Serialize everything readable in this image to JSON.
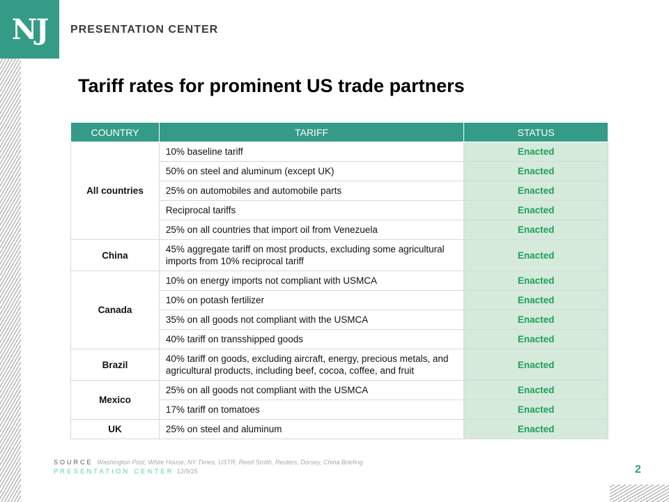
{
  "header": {
    "logo": "NJ",
    "brand": "PRESENTATION CENTER"
  },
  "title": "Tariff rates for prominent US trade partners",
  "table": {
    "headers": [
      "COUNTRY",
      "TARIFF",
      "STATUS"
    ],
    "groups": [
      {
        "country": "All countries",
        "rows": [
          {
            "tariff": "10% baseline tariff",
            "status": "Enacted"
          },
          {
            "tariff": "50% on steel and aluminum (except UK)",
            "status": "Enacted"
          },
          {
            "tariff": "25% on automobiles and automobile parts",
            "status": "Enacted"
          },
          {
            "tariff": "Reciprocal tariffs",
            "status": "Enacted"
          },
          {
            "tariff": "25% on all countries that import oil from Venezuela",
            "status": "Enacted"
          }
        ]
      },
      {
        "country": "China",
        "rows": [
          {
            "tariff": "45% aggregate tariff on most products, excluding some agricultural imports from 10% reciprocal tariff",
            "status": "Enacted",
            "tall": true
          }
        ]
      },
      {
        "country": "Canada",
        "rows": [
          {
            "tariff": "10% on energy imports not compliant with USMCA",
            "status": "Enacted"
          },
          {
            "tariff": "10% on potash fertilizer",
            "status": "Enacted"
          },
          {
            "tariff": "35% on all goods not compliant with the USMCA",
            "status": "Enacted"
          },
          {
            "tariff": "40% tariff on transshipped goods",
            "status": "Enacted"
          }
        ]
      },
      {
        "country": "Brazil",
        "rows": [
          {
            "tariff": "40% tariff on goods, excluding aircraft, energy, precious metals, and agricultural products, including beef, cocoa, coffee, and fruit",
            "status": "Enacted",
            "tall": true
          }
        ]
      },
      {
        "country": "Mexico",
        "rows": [
          {
            "tariff": "25% on all goods not compliant with the USMCA",
            "status": "Enacted"
          },
          {
            "tariff": "17% tariff on tomatoes",
            "status": "Enacted"
          }
        ]
      },
      {
        "country": "UK",
        "rows": [
          {
            "tariff": "25% on steel and aluminum",
            "status": "Enacted"
          }
        ]
      }
    ]
  },
  "footer": {
    "source_label": "SOURCE",
    "source": "Washington Post, White House, NY Times, USTR, Reed Smith, Reuters, Dorsey, China Briefing",
    "brand": "PRESENTATION CENTER",
    "date": "12/9/25",
    "page": "2"
  },
  "colors": {
    "accent": "#339b86",
    "status_bg": "#d5eadb",
    "status_text": "#1e9e5a"
  }
}
